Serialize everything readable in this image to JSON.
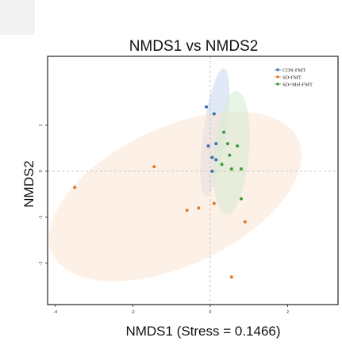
{
  "chart_data": {
    "type": "scatter",
    "title": "NMDS1 vs NMDS2",
    "xlabel": "NMDS1 (Stress = 0.1466)",
    "ylabel": "NMDS2",
    "xlim": [
      -4.2,
      3.3
    ],
    "ylim": [
      -2.9,
      2.5
    ],
    "x_ticks": [
      "-4",
      "-2",
      "0",
      "2"
    ],
    "x_tick_values": [
      -4,
      -2,
      0,
      2
    ],
    "y_ticks": [
      "1",
      "0",
      "-1",
      "-2"
    ],
    "y_tick_values": [
      1,
      0,
      -1,
      -2
    ],
    "grid": false,
    "reference_lines": [
      0,
      0
    ],
    "legend": {
      "placement": "top-right"
    },
    "series": [
      {
        "name": "CON-FMT",
        "color": "#3a6fb0",
        "fill": "#c9d7ee",
        "ellipse": {
          "cx": 0.12,
          "cy": 0.85,
          "rx": 0.3,
          "ry": 1.4,
          "angle": 8
        },
        "points": [
          [
            -0.1,
            1.4
          ],
          [
            0.1,
            1.25
          ],
          [
            -0.05,
            0.55
          ],
          [
            0.15,
            0.6
          ],
          [
            0.05,
            0.3
          ],
          [
            0.15,
            0.25
          ],
          [
            0.05,
            0.0
          ]
        ]
      },
      {
        "name": "SD-FMT",
        "color": "#e07a2c",
        "fill": "#fbe3d2",
        "ellipse": {
          "cx": -0.9,
          "cy": -0.55,
          "rx": 3.5,
          "ry": 1.5,
          "angle": -25
        },
        "points": [
          [
            -1.45,
            0.1
          ],
          [
            -3.5,
            -0.35
          ],
          [
            0.1,
            -0.7
          ],
          [
            -0.3,
            -0.8
          ],
          [
            -0.6,
            -0.85
          ],
          [
            0.9,
            -1.1
          ],
          [
            0.55,
            -2.3
          ]
        ]
      },
      {
        "name": "SD+Mel-FMT",
        "color": "#3e9a3a",
        "fill": "#d6ebcf",
        "ellipse": {
          "cx": 0.55,
          "cy": 0.4,
          "rx": 0.45,
          "ry": 1.35,
          "angle": 5
        },
        "points": [
          [
            0.35,
            0.85
          ],
          [
            0.45,
            0.6
          ],
          [
            0.7,
            0.55
          ],
          [
            0.5,
            0.35
          ],
          [
            0.3,
            0.15
          ],
          [
            0.55,
            0.05
          ],
          [
            0.8,
            0.05
          ],
          [
            0.8,
            -0.6
          ]
        ]
      }
    ]
  }
}
